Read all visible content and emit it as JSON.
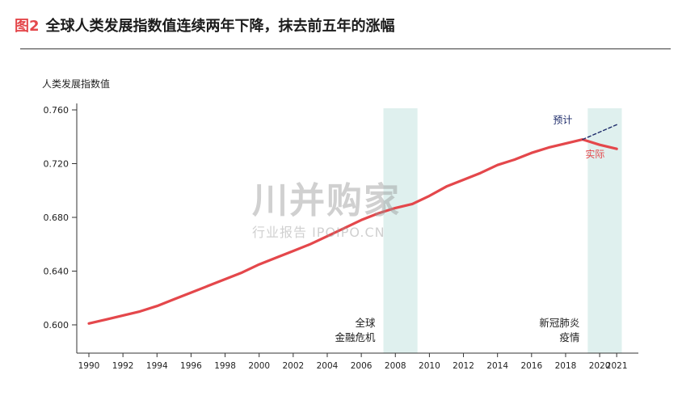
{
  "header": {
    "figure_label": "图2",
    "title": "全球人类发展指数值连续两年下降，抹去前五年的涨幅"
  },
  "watermark": {
    "main": "川并购家",
    "sub": "行业报告 IPOIPO.CN"
  },
  "colors": {
    "actual": "#e4474b",
    "forecast": "#1f2d6b",
    "band": "#dff0ee",
    "axis": "#333333",
    "accent": "#e4474b"
  },
  "chart_data": {
    "type": "line",
    "ylabel": "人类发展指数值",
    "ylim": [
      0.59,
      0.76
    ],
    "y_ticks": [
      "0.600",
      "0.640",
      "0.680",
      "0.720",
      "0.760"
    ],
    "x_ticks": [
      "1990",
      "1992",
      "1994",
      "1996",
      "1998",
      "2000",
      "2002",
      "2004",
      "2006",
      "2008",
      "2010",
      "2012",
      "2014",
      "2016",
      "2018",
      "2020",
      "2021"
    ],
    "series": [
      {
        "name": "实际",
        "color": "#e4474b",
        "x": [
          1990,
          1991,
          1992,
          1993,
          1994,
          1995,
          1996,
          1997,
          1998,
          1999,
          2000,
          2001,
          2002,
          2003,
          2004,
          2005,
          2006,
          2007,
          2008,
          2009,
          2010,
          2011,
          2012,
          2013,
          2014,
          2015,
          2016,
          2017,
          2018,
          2019,
          2020,
          2021
        ],
        "y": [
          0.601,
          0.604,
          0.607,
          0.61,
          0.614,
          0.619,
          0.624,
          0.629,
          0.634,
          0.639,
          0.645,
          0.65,
          0.655,
          0.66,
          0.666,
          0.672,
          0.678,
          0.683,
          0.687,
          0.69,
          0.696,
          0.703,
          0.708,
          0.713,
          0.719,
          0.723,
          0.728,
          0.732,
          0.735,
          0.738,
          0.734,
          0.731
        ]
      },
      {
        "name": "预计",
        "color": "#1f2d6b",
        "dashed": true,
        "x": [
          2019,
          2021
        ],
        "y": [
          0.738,
          0.749
        ]
      }
    ],
    "bands": [
      {
        "x_start": 2007.3,
        "x_end": 2009.3,
        "label_line1": "全球",
        "label_line2": "金融危机"
      },
      {
        "x_start": 2019.3,
        "x_end": 2021.3,
        "label_line1": "新冠肺炎",
        "label_line2": "疫情"
      }
    ]
  }
}
